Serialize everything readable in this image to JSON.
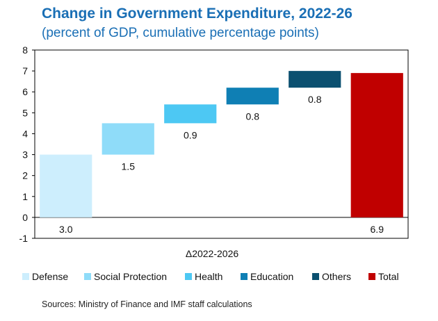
{
  "chart_data": {
    "type": "bar",
    "subtype": "waterfall",
    "title": "Change in Government Expenditure, 2022-26",
    "subtitle": "(percent of GDP, cumulative percentage points)",
    "xlabel": "Δ2022-2026",
    "ylabel": "",
    "ylim": [
      -1,
      8
    ],
    "yticks": [
      -1,
      0,
      1,
      2,
      3,
      4,
      5,
      6,
      7,
      8
    ],
    "grid": false,
    "legend_position": "bottom",
    "categories": [
      "Defense",
      "Social Protection",
      "Health",
      "Education",
      "Others",
      "Total"
    ],
    "values": [
      3.0,
      1.5,
      0.9,
      0.8,
      0.8,
      6.9
    ],
    "value_labels": [
      "3.0",
      "1.5",
      "0.9",
      "0.8",
      "0.8",
      "6.9"
    ],
    "colors": [
      "#cdeefd",
      "#8fdcf9",
      "#4dc8f3",
      "#0f7fb4",
      "#0b5070",
      "#c00000"
    ]
  },
  "source": "Sources: Ministry of Finance and IMF staff calculations"
}
